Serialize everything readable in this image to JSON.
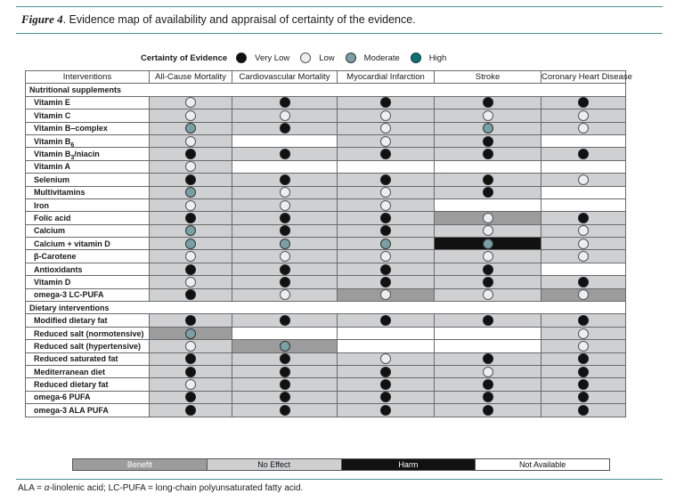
{
  "figure": {
    "number": "Figure 4",
    "caption": ". Evidence map of availability and appraisal of certainty of the evidence."
  },
  "legend": {
    "title": "Certainty of Evidence",
    "items": [
      {
        "key": "vl",
        "label": "Very Low",
        "color": "#111111"
      },
      {
        "key": "lo",
        "label": "Low",
        "color": "#eceeef"
      },
      {
        "key": "mo",
        "label": "Moderate",
        "color": "#78a0a5"
      },
      {
        "key": "hi",
        "label": "High",
        "color": "#0c6f73"
      }
    ]
  },
  "table": {
    "headers": [
      "Interventions",
      "All-Cause Mortality",
      "Cardiovascular Mortality",
      "Myocardial Infarction",
      "Stroke",
      "Coronary Heart Disease"
    ],
    "sections": [
      {
        "title": "Nutritional supplements",
        "rows": [
          {
            "name": "Vitamin E",
            "cells": [
              [
                "N",
                "lo"
              ],
              [
                "N",
                "vl"
              ],
              [
                "N",
                "vl"
              ],
              [
                "N",
                "vl"
              ],
              [
                "N",
                "vl"
              ]
            ]
          },
          {
            "name": "Vitamin C",
            "cells": [
              [
                "N",
                "lo"
              ],
              [
                "N",
                "lo"
              ],
              [
                "N",
                "lo"
              ],
              [
                "N",
                "lo"
              ],
              [
                "N",
                "lo"
              ]
            ]
          },
          {
            "name": "Vitamin B–complex",
            "cells": [
              [
                "N",
                "mo"
              ],
              [
                "N",
                "vl"
              ],
              [
                "N",
                "lo"
              ],
              [
                "N",
                "mo"
              ],
              [
                "N",
                "lo"
              ]
            ]
          },
          {
            "name": "Vitamin B",
            "sub": "6",
            "cells": [
              [
                "N",
                "lo"
              ],
              [
                "A",
                ""
              ],
              [
                "N",
                "lo"
              ],
              [
                "N",
                "vl"
              ],
              [
                "A",
                ""
              ]
            ]
          },
          {
            "name": "Vitamin B",
            "sub": "3",
            "suffix": "/niacin",
            "cells": [
              [
                "N",
                "vl"
              ],
              [
                "N",
                "vl"
              ],
              [
                "N",
                "vl"
              ],
              [
                "N",
                "vl"
              ],
              [
                "N",
                "vl"
              ]
            ]
          },
          {
            "name": "Vitamin A",
            "cells": [
              [
                "N",
                "lo"
              ],
              [
                "A",
                ""
              ],
              [
                "A",
                ""
              ],
              [
                "A",
                ""
              ],
              [
                "A",
                ""
              ]
            ]
          },
          {
            "name": "Selenium",
            "cells": [
              [
                "N",
                "vl"
              ],
              [
                "N",
                "vl"
              ],
              [
                "N",
                "vl"
              ],
              [
                "N",
                "vl"
              ],
              [
                "N",
                "lo"
              ]
            ]
          },
          {
            "name": "Multivitamins",
            "cells": [
              [
                "N",
                "mo"
              ],
              [
                "N",
                "lo"
              ],
              [
                "N",
                "lo"
              ],
              [
                "N",
                "vl"
              ],
              [
                "A",
                ""
              ]
            ]
          },
          {
            "name": "Iron",
            "cells": [
              [
                "N",
                "lo"
              ],
              [
                "N",
                "lo"
              ],
              [
                "N",
                "lo"
              ],
              [
                "A",
                ""
              ],
              [
                "A",
                ""
              ]
            ]
          },
          {
            "name": "Folic acid",
            "cells": [
              [
                "N",
                "vl"
              ],
              [
                "N",
                "vl"
              ],
              [
                "N",
                "vl"
              ],
              [
                "B",
                "lo"
              ],
              [
                "N",
                "vl"
              ]
            ]
          },
          {
            "name": "Calcium",
            "cells": [
              [
                "N",
                "mo"
              ],
              [
                "N",
                "vl"
              ],
              [
                "N",
                "vl"
              ],
              [
                "N",
                "lo"
              ],
              [
                "N",
                "lo"
              ]
            ]
          },
          {
            "name": "Calcium + vitamin D",
            "cells": [
              [
                "N",
                "mo"
              ],
              [
                "N",
                "mo"
              ],
              [
                "N",
                "mo"
              ],
              [
                "H",
                "mo"
              ],
              [
                "N",
                "lo"
              ]
            ]
          },
          {
            "name": "β-Carotene",
            "cells": [
              [
                "N",
                "lo"
              ],
              [
                "N",
                "lo"
              ],
              [
                "N",
                "lo"
              ],
              [
                "N",
                "lo"
              ],
              [
                "N",
                "lo"
              ]
            ]
          },
          {
            "name": "Antioxidants",
            "cells": [
              [
                "N",
                "vl"
              ],
              [
                "N",
                "vl"
              ],
              [
                "N",
                "vl"
              ],
              [
                "N",
                "vl"
              ],
              [
                "A",
                ""
              ]
            ]
          },
          {
            "name": "Vitamin D",
            "cells": [
              [
                "N",
                "lo"
              ],
              [
                "N",
                "vl"
              ],
              [
                "N",
                "vl"
              ],
              [
                "N",
                "vl"
              ],
              [
                "N",
                "vl"
              ]
            ]
          },
          {
            "name": "omega-3 LC-PUFA",
            "cells": [
              [
                "N",
                "vl"
              ],
              [
                "N",
                "lo"
              ],
              [
                "B",
                "lo"
              ],
              [
                "N",
                "lo"
              ],
              [
                "B",
                "lo"
              ]
            ]
          }
        ]
      },
      {
        "title": "Dietary interventions",
        "rows": [
          {
            "name": "Modified dietary fat",
            "cells": [
              [
                "N",
                "vl"
              ],
              [
                "N",
                "vl"
              ],
              [
                "N",
                "vl"
              ],
              [
                "N",
                "vl"
              ],
              [
                "N",
                "vl"
              ]
            ]
          },
          {
            "name": "Reduced salt (normotensive)",
            "cells": [
              [
                "B",
                "mo"
              ],
              [
                "A",
                ""
              ],
              [
                "A",
                ""
              ],
              [
                "A",
                ""
              ],
              [
                "N",
                "lo"
              ]
            ]
          },
          {
            "name": "Reduced salt (hypertensive)",
            "cells": [
              [
                "N",
                "lo"
              ],
              [
                "B",
                "mo"
              ],
              [
                "A",
                ""
              ],
              [
                "A",
                ""
              ],
              [
                "N",
                "lo"
              ]
            ]
          },
          {
            "name": "Reduced saturated fat",
            "cells": [
              [
                "N",
                "vl"
              ],
              [
                "N",
                "vl"
              ],
              [
                "N",
                "lo"
              ],
              [
                "N",
                "vl"
              ],
              [
                "N",
                "vl"
              ]
            ]
          },
          {
            "name": "Mediterranean diet",
            "cells": [
              [
                "N",
                "vl"
              ],
              [
                "N",
                "vl"
              ],
              [
                "N",
                "vl"
              ],
              [
                "N",
                "lo"
              ],
              [
                "N",
                "vl"
              ]
            ]
          },
          {
            "name": "Reduced dietary fat",
            "cells": [
              [
                "N",
                "lo"
              ],
              [
                "N",
                "vl"
              ],
              [
                "N",
                "vl"
              ],
              [
                "N",
                "vl"
              ],
              [
                "N",
                "vl"
              ]
            ]
          },
          {
            "name": "omega-6 PUFA",
            "cells": [
              [
                "N",
                "vl"
              ],
              [
                "N",
                "vl"
              ],
              [
                "N",
                "vl"
              ],
              [
                "N",
                "vl"
              ],
              [
                "N",
                "vl"
              ]
            ]
          },
          {
            "name": "omega-3 ALA PUFA",
            "cells": [
              [
                "N",
                "vl"
              ],
              [
                "N",
                "vl"
              ],
              [
                "N",
                "vl"
              ],
              [
                "N",
                "vl"
              ],
              [
                "N",
                "vl"
              ]
            ]
          }
        ]
      }
    ]
  },
  "key": {
    "benefit": "Benefit",
    "no_effect": "No Effect",
    "harm": "Harm",
    "not_available": "Not Available"
  },
  "footnote": {
    "p1": "ALA = ",
    "alpha": "α",
    "p2": "-linolenic acid; LC-PUFA = long-chain polyunsaturated fatty acid."
  }
}
